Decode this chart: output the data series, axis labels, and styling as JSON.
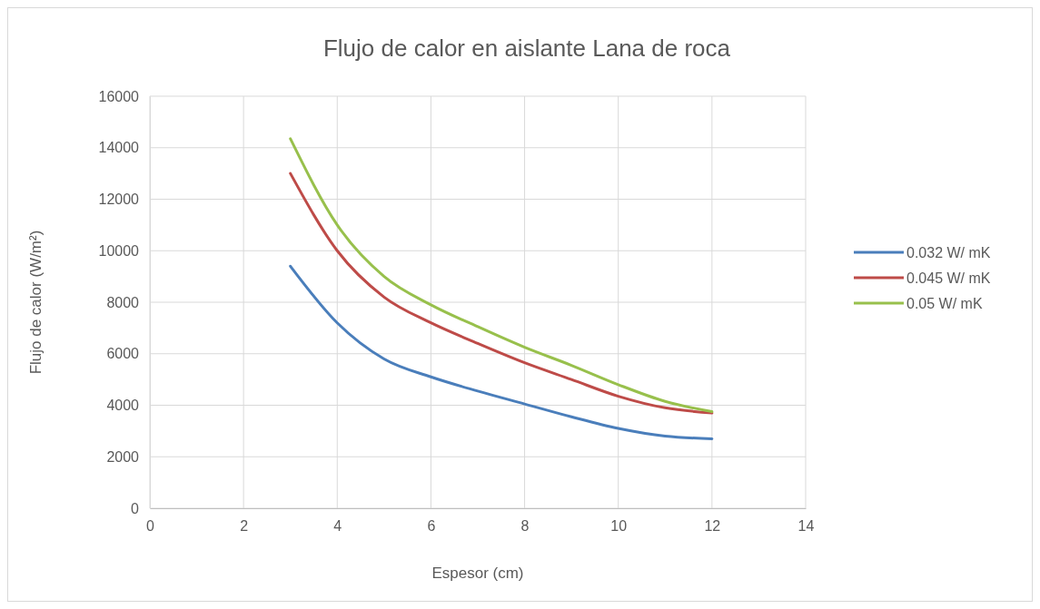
{
  "chart_data": {
    "type": "line",
    "title": "Flujo de calor en aislante Lana de roca",
    "xlabel": "Espesor (cm)",
    "ylabel": "Flujo de calor (W/m²)",
    "x": [
      3,
      4,
      5,
      6,
      7,
      8,
      9,
      10,
      11,
      12
    ],
    "series": [
      {
        "name": "0.032 W/ mK",
        "color": "#4a7ebb",
        "values": [
          9400,
          7200,
          5800,
          5100,
          4550,
          4050,
          3550,
          3100,
          2800,
          2700
        ]
      },
      {
        "name": "0.045 W/ mK",
        "color": "#be4b48",
        "values": [
          13000,
          10000,
          8200,
          7200,
          6400,
          5650,
          5000,
          4350,
          3900,
          3700
        ]
      },
      {
        "name": "0.05 W/ mK",
        "color": "#98c04c",
        "values": [
          14350,
          11000,
          9000,
          7900,
          7050,
          6250,
          5550,
          4800,
          4150,
          3750
        ]
      }
    ],
    "xlim": [
      0,
      14
    ],
    "xticks": [
      0,
      2,
      4,
      6,
      8,
      10,
      12,
      14
    ],
    "ylim": [
      0,
      16000
    ],
    "yticks": [
      0,
      2000,
      4000,
      6000,
      8000,
      10000,
      12000,
      14000,
      16000
    ],
    "grid": true,
    "legend": "right",
    "marker": "none",
    "line_style": "solid"
  }
}
